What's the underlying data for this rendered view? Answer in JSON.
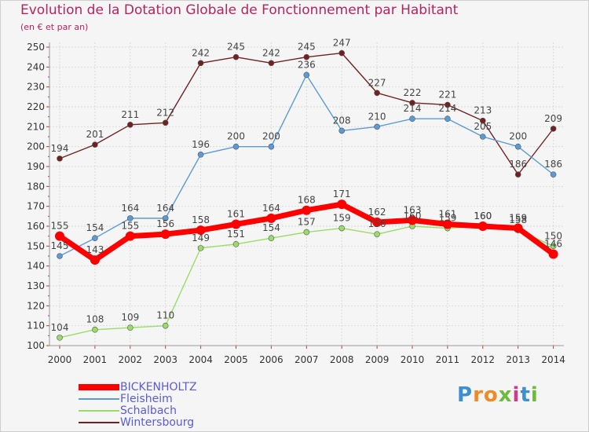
{
  "chart_data": {
    "type": "line",
    "title": "Evolution de la Dotation Globale de Fonctionnement par Habitant",
    "subtitle": "(en € et par an)",
    "xlabel": "",
    "ylabel": "",
    "x": [
      "2000",
      "2001",
      "2002",
      "2003",
      "2004",
      "2005",
      "2006",
      "2007",
      "2008",
      "2009",
      "2010",
      "2011",
      "2012",
      "2013",
      "2014"
    ],
    "ylim": [
      100,
      250
    ],
    "yticks": [
      100,
      110,
      120,
      130,
      140,
      150,
      160,
      170,
      180,
      190,
      200,
      210,
      220,
      230,
      240,
      250
    ],
    "grid": true,
    "legend_position": "bottom-left",
    "series": [
      {
        "name": "BICKENHOLTZ",
        "color": "#ff0000",
        "values": [
          155,
          143,
          155,
          156,
          158,
          161,
          164,
          168,
          171,
          162,
          163,
          161,
          160,
          159,
          146
        ]
      },
      {
        "name": "Fleisheim",
        "color": "#5b9bd5",
        "values": [
          145,
          154,
          164,
          164,
          196,
          200,
          200,
          236,
          208,
          210,
          214,
          214,
          205,
          200,
          186
        ]
      },
      {
        "name": "Schalbach",
        "color": "#99dd66",
        "values": [
          104,
          108,
          109,
          110,
          149,
          151,
          154,
          157,
          159,
          156,
          160,
          159,
          160,
          158,
          150
        ]
      },
      {
        "name": "Wintersbourg",
        "color": "#722121",
        "values": [
          194,
          201,
          211,
          212,
          242,
          245,
          242,
          245,
          247,
          227,
          222,
          221,
          213,
          186,
          209
        ]
      }
    ]
  },
  "logo": {
    "text": "Proxiti",
    "letters": [
      "P",
      "r",
      "o",
      "x",
      "i",
      "t",
      "i"
    ]
  }
}
